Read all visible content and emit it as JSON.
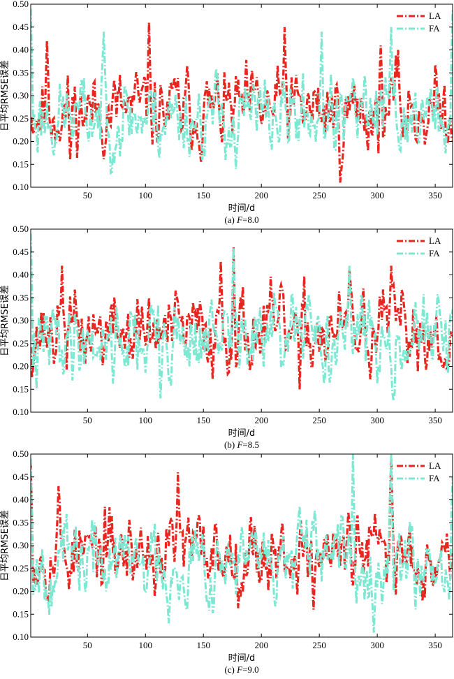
{
  "chart_data": [
    {
      "type": "line",
      "caption_prefix": "(a) ",
      "caption_var": "F",
      "caption_value": "=8.0",
      "xlabel": "时间/d",
      "ylabel": "日平均RMSE误差",
      "xlim": [
        1,
        365
      ],
      "ylim": [
        0.1,
        0.5
      ],
      "xticks": [
        50,
        100,
        150,
        200,
        250,
        300,
        350
      ],
      "yticks": [
        "0.10",
        "0.15",
        "0.20",
        "0.25",
        "0.30",
        "0.35",
        "0.40",
        "0.45",
        "0.50"
      ],
      "legend_position": "top-right",
      "series": [
        {
          "name": "LA",
          "color": "#e8251f",
          "mean": 0.268,
          "spread": 0.045,
          "seed": 11,
          "peaks": [
            [
              15,
              0.42
            ],
            [
              103,
              0.46
            ],
            [
              220,
              0.45
            ],
            [
              268,
              0.11
            ],
            [
              303,
              0.41
            ],
            [
              318,
              0.4
            ],
            [
              35,
              0.16
            ]
          ]
        },
        {
          "name": "FA",
          "color": "#7de8d2",
          "mean": 0.255,
          "spread": 0.045,
          "seed": 23,
          "peaks": [
            [
              1,
              0.49
            ],
            [
              64,
              0.44
            ],
            [
              252,
              0.44
            ],
            [
              312,
              0.45
            ],
            [
              365,
              0.49
            ],
            [
              178,
              0.14
            ]
          ]
        }
      ]
    },
    {
      "type": "line",
      "caption_prefix": "(b) ",
      "caption_var": "F",
      "caption_value": "=8.5",
      "xlabel": "时间/d",
      "ylabel": "日平均RMSE误差",
      "xlim": [
        1,
        365
      ],
      "ylim": [
        0.1,
        0.5
      ],
      "xticks": [
        50,
        100,
        150,
        200,
        250,
        300,
        350
      ],
      "yticks": [
        "0.10",
        "0.15",
        "0.20",
        "0.25",
        "0.30",
        "0.35",
        "0.40",
        "0.45",
        "0.50"
      ],
      "legend_position": "top-right",
      "series": [
        {
          "name": "LA",
          "color": "#e8251f",
          "mean": 0.275,
          "spread": 0.045,
          "seed": 37,
          "peaks": [
            [
              28,
              0.42
            ],
            [
              165,
              0.43
            ],
            [
              176,
              0.46
            ],
            [
              276,
              0.41
            ],
            [
              312,
              0.42
            ],
            [
              233,
              0.15
            ]
          ]
        },
        {
          "name": "FA",
          "color": "#7de8d2",
          "mean": 0.262,
          "spread": 0.045,
          "seed": 41,
          "peaks": [
            [
              1,
              0.49
            ],
            [
              176,
              0.46
            ],
            [
              276,
              0.42
            ],
            [
              113,
              0.13
            ],
            [
              6,
              0.15
            ]
          ]
        }
      ]
    },
    {
      "type": "line",
      "caption_prefix": "(c) ",
      "caption_var": "F",
      "caption_value": "=9.0",
      "xlabel": "时间/d",
      "ylabel": "日平均RMSE误差",
      "xlim": [
        1,
        365
      ],
      "ylim": [
        0.1,
        0.5
      ],
      "xticks": [
        50,
        100,
        150,
        200,
        250,
        300,
        350
      ],
      "yticks": [
        "0.10",
        "0.15",
        "0.20",
        "0.25",
        "0.30",
        "0.35",
        "0.40",
        "0.45",
        "0.50"
      ],
      "legend_position": "top-right",
      "series": [
        {
          "name": "LA",
          "color": "#e8251f",
          "mean": 0.285,
          "spread": 0.045,
          "seed": 53,
          "peaks": [
            [
              1,
              0.48
            ],
            [
              25,
              0.43
            ],
            [
              128,
              0.46
            ],
            [
              312,
              0.49
            ],
            [
              245,
              0.16
            ]
          ]
        },
        {
          "name": "FA",
          "color": "#7de8d2",
          "mean": 0.268,
          "spread": 0.045,
          "seed": 67,
          "peaks": [
            [
              1,
              0.49
            ],
            [
              279,
              0.5
            ],
            [
              312,
              0.5
            ],
            [
              120,
              0.13
            ],
            [
              365,
              0.45
            ]
          ]
        }
      ]
    }
  ]
}
